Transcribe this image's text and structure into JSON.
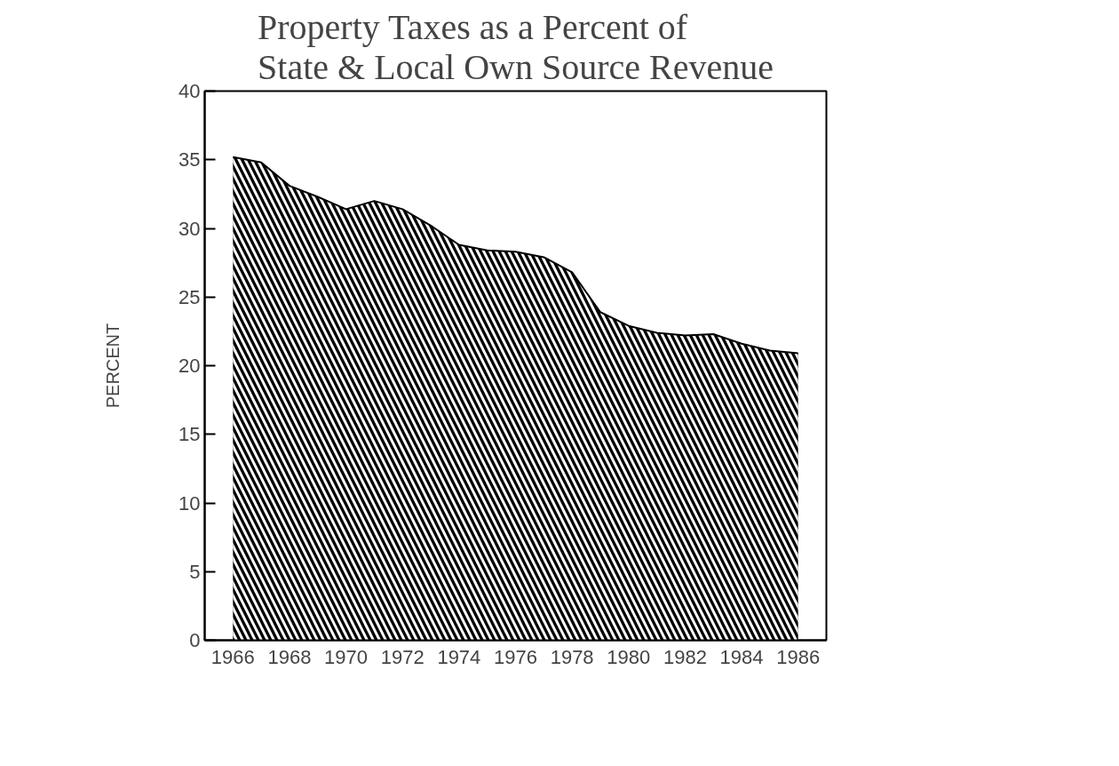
{
  "chart_data": {
    "type": "area",
    "title": "Property Taxes as a Percent of\nState & Local Own Source Revenue",
    "ylabel": "PERCENT",
    "x": [
      1966,
      1967,
      1968,
      1969,
      1970,
      1971,
      1972,
      1973,
      1974,
      1975,
      1976,
      1977,
      1978,
      1979,
      1980,
      1981,
      1982,
      1983,
      1984,
      1985,
      1986
    ],
    "series": [
      {
        "color": "#000000",
        "values": [
          35.2,
          34.8,
          33.1,
          32.3,
          31.4,
          32.0,
          31.4,
          30.2,
          28.8,
          28.4,
          28.3,
          27.9,
          26.8,
          23.9,
          22.9,
          22.4,
          22.2,
          22.3,
          21.6,
          21.1,
          20.9
        ]
      }
    ],
    "xlim": [
      1965,
      1987
    ],
    "ylim": [
      0,
      40
    ],
    "xticks": [
      1966,
      1968,
      1970,
      1972,
      1974,
      1976,
      1978,
      1980,
      1982,
      1984,
      1986
    ],
    "yticks": [
      0,
      5,
      10,
      15,
      20,
      25,
      30,
      35,
      40
    ],
    "grid": false
  }
}
